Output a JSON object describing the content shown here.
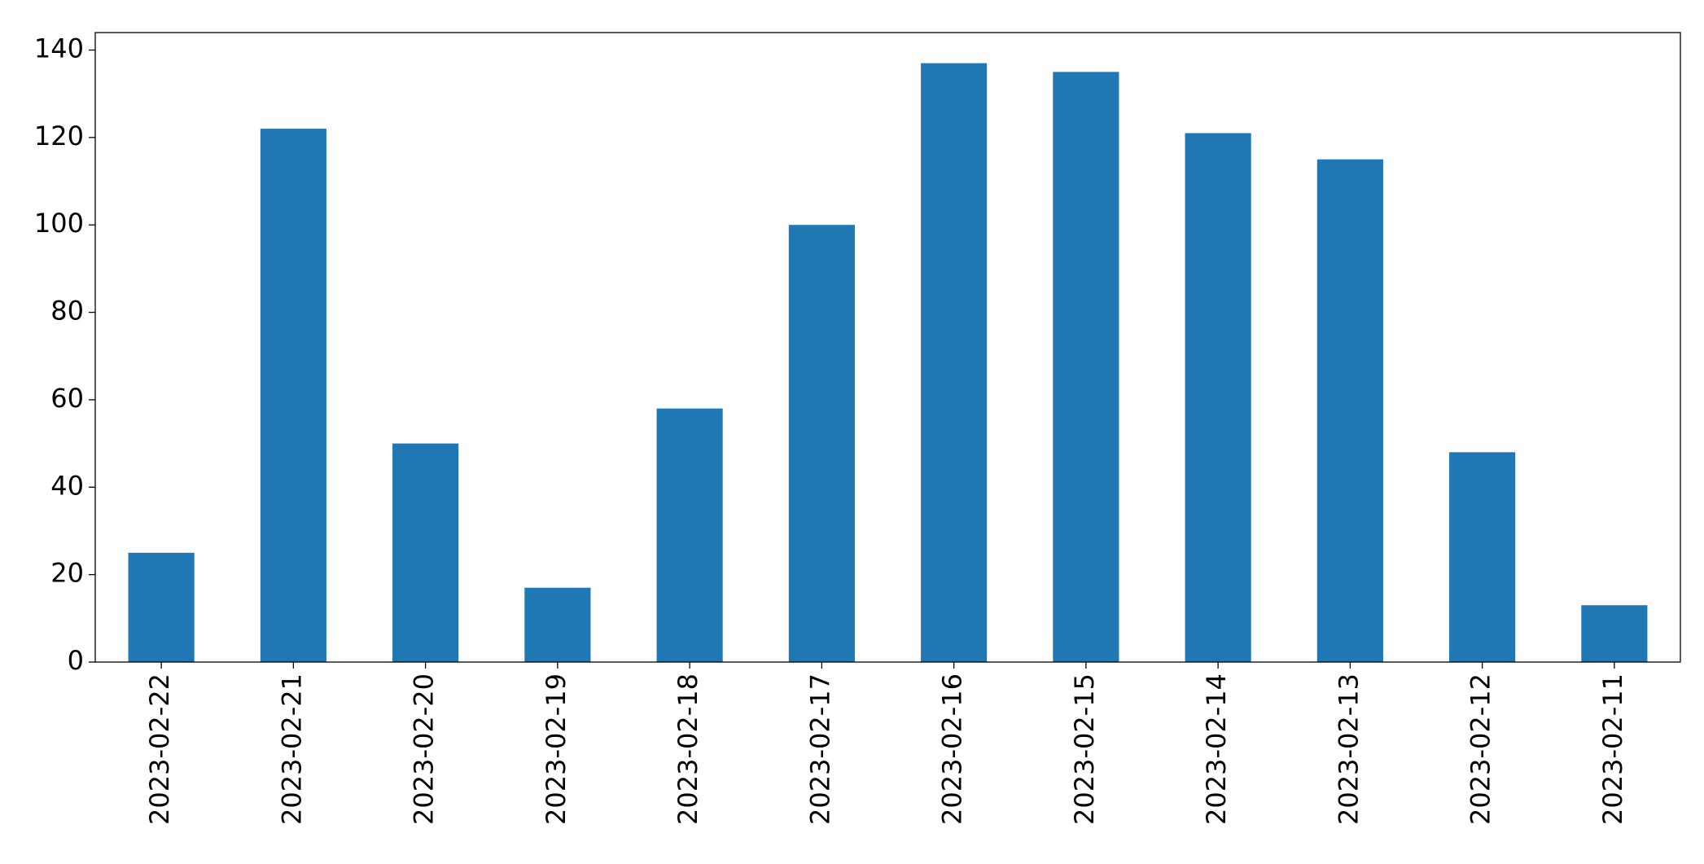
{
  "chart_data": {
    "type": "bar",
    "categories": [
      "2023-02-22",
      "2023-02-21",
      "2023-02-20",
      "2023-02-19",
      "2023-02-18",
      "2023-02-17",
      "2023-02-16",
      "2023-02-15",
      "2023-02-14",
      "2023-02-13",
      "2023-02-12",
      "2023-02-11"
    ],
    "values": [
      25,
      122,
      50,
      17,
      58,
      100,
      137,
      135,
      121,
      115,
      48,
      13
    ],
    "color": "#1f77b4",
    "ylim": [
      0,
      144
    ],
    "yticks": [
      0,
      20,
      40,
      60,
      80,
      100,
      120,
      140
    ],
    "grid": false
  }
}
